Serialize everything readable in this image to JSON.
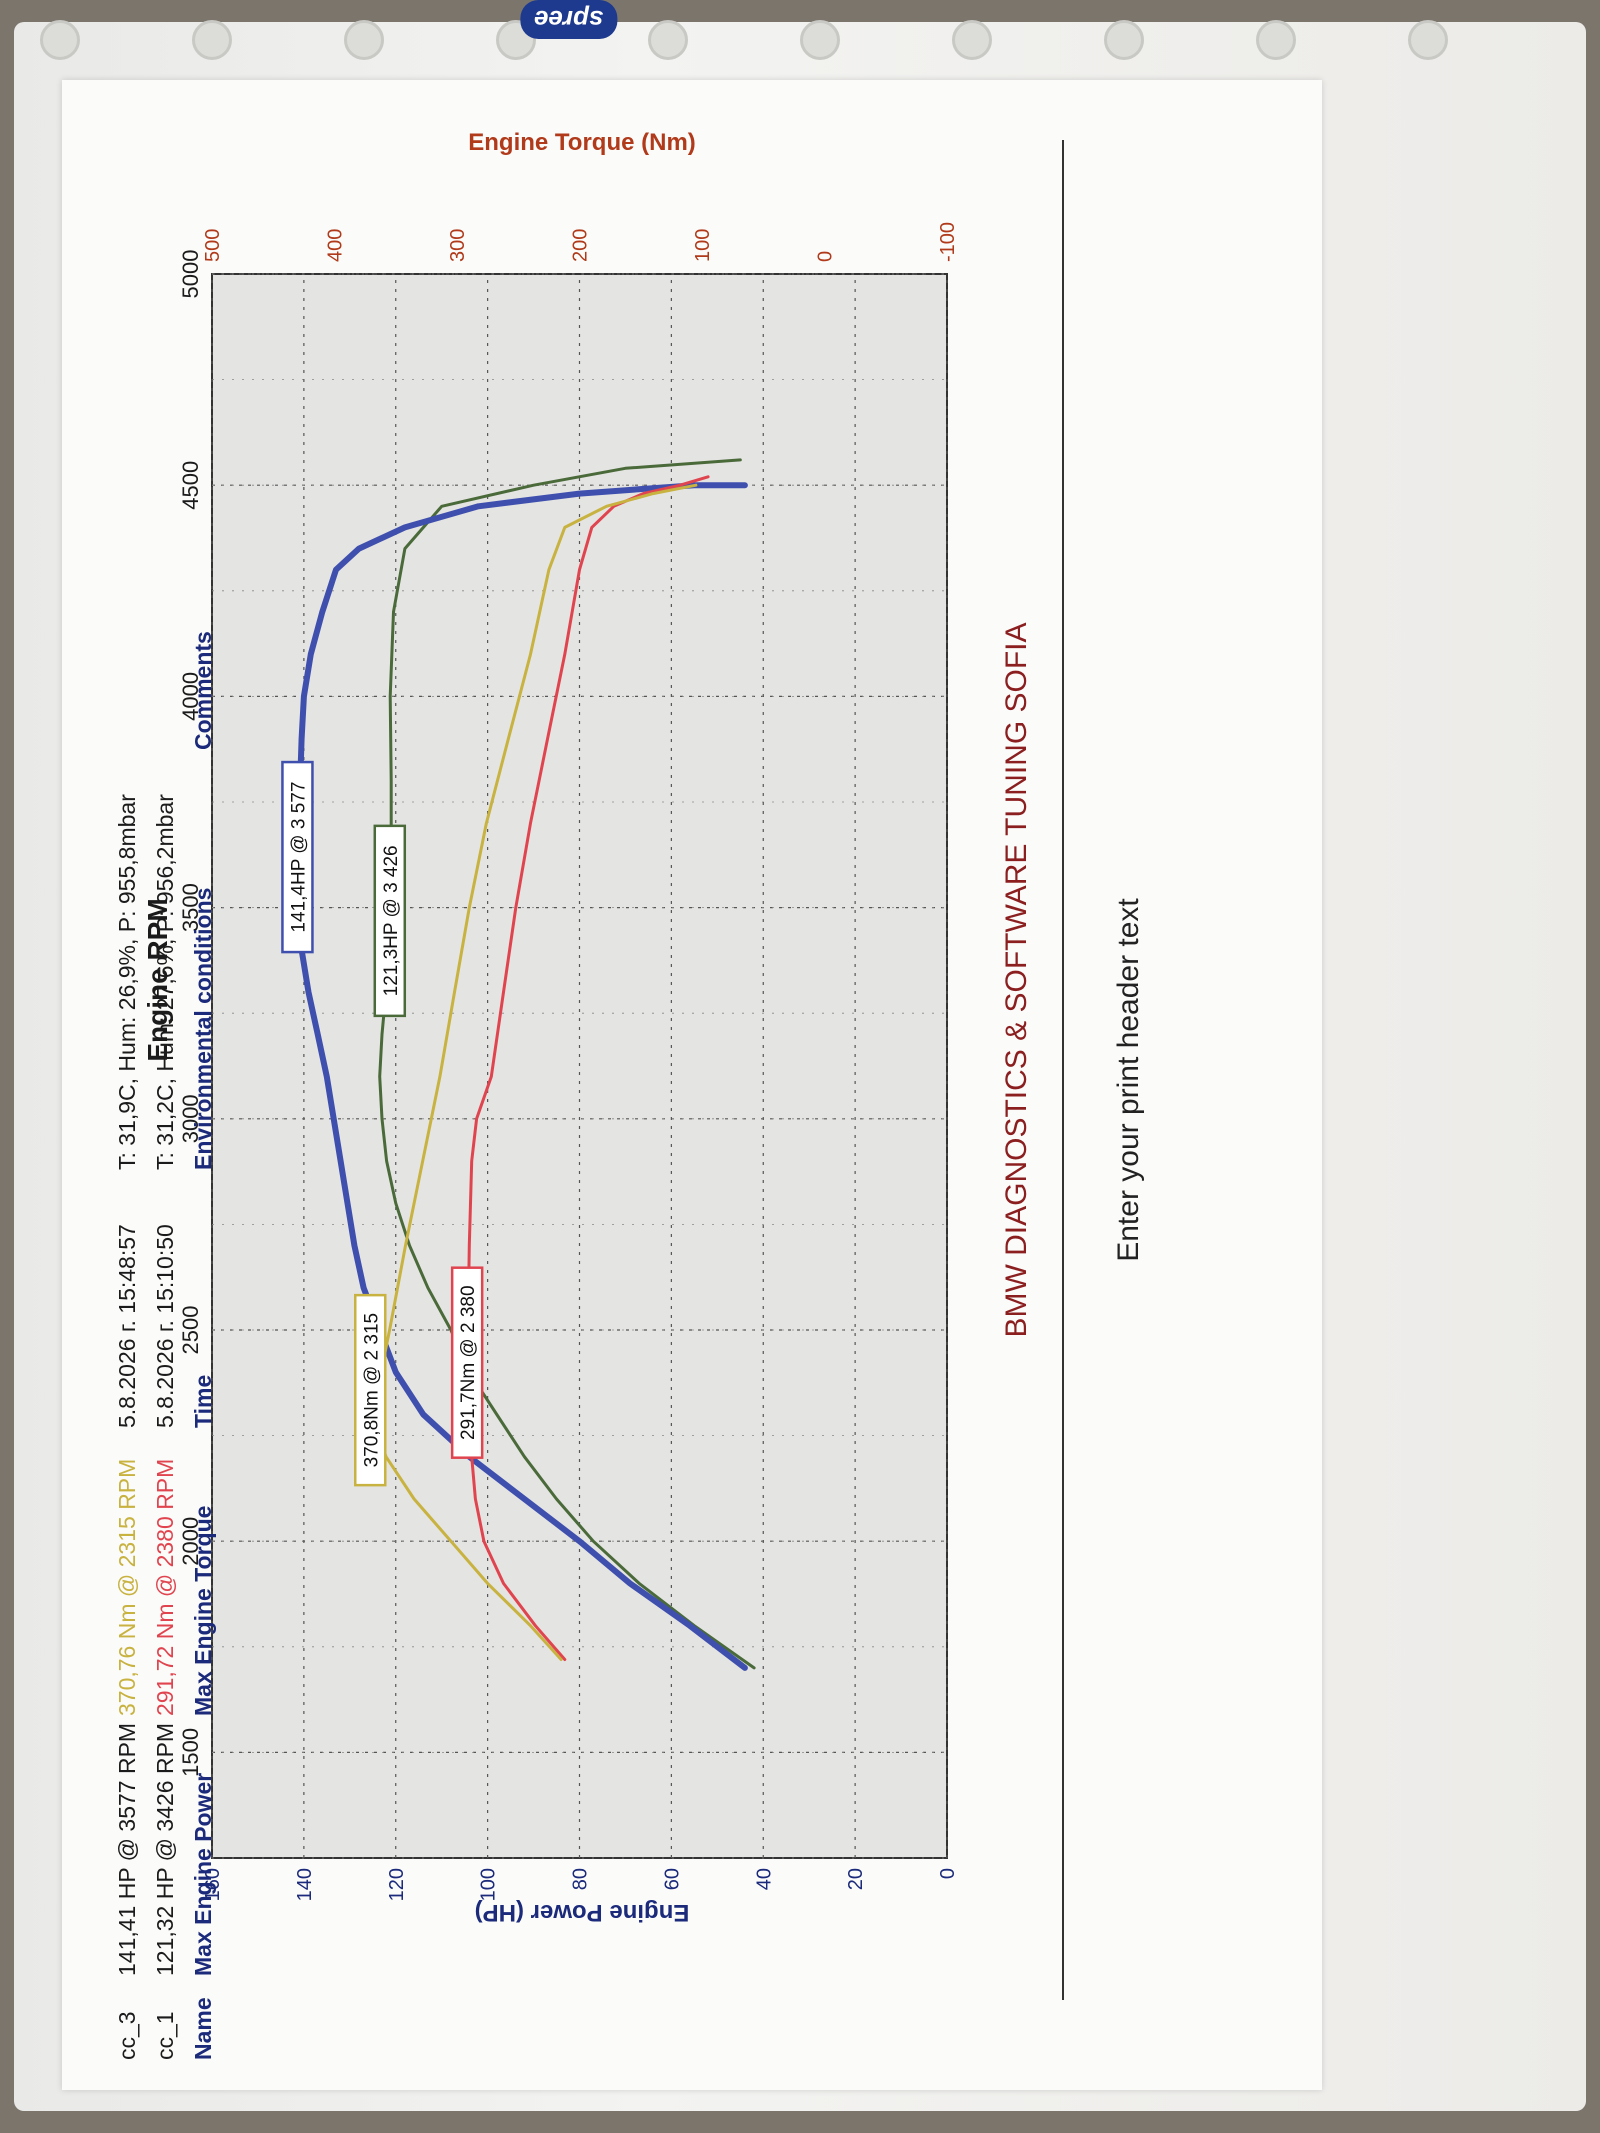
{
  "sleeve": {
    "brand": "spree"
  },
  "page": {
    "header_text": "Enter your print header text"
  },
  "chart_data": {
    "type": "line",
    "title": "BMW DIAGNOSTICS & SOFTWARE TUNING SOFIA",
    "xlabel": "Engine RPM",
    "ylabel_left": "Engine Power (HP)",
    "ylabel_right": "Engine Torque (Nm)",
    "xlim": [
      1250,
      5000
    ],
    "ylim_left": [
      0,
      160
    ],
    "ylim_right": [
      -100,
      500
    ],
    "x_ticks": [
      "1500",
      "2000",
      "2500",
      "3000",
      "3500",
      "4000",
      "4500",
      "5000"
    ],
    "y_ticks_left": [
      "0",
      "20",
      "40",
      "60",
      "80",
      "100",
      "120",
      "140",
      "160"
    ],
    "y_ticks_right": [
      "-100",
      "0",
      "100",
      "200",
      "300",
      "400",
      "500"
    ],
    "grid": true,
    "series": [
      {
        "name": "cc_1",
        "quantity": "power",
        "axis": "left",
        "color": "#4a6a3a",
        "points": [
          [
            1700,
            42
          ],
          [
            1800,
            55
          ],
          [
            1900,
            67
          ],
          [
            2000,
            77
          ],
          [
            2100,
            85
          ],
          [
            2200,
            92
          ],
          [
            2300,
            98
          ],
          [
            2400,
            104
          ],
          [
            2500,
            108
          ],
          [
            2600,
            113
          ],
          [
            2700,
            117
          ],
          [
            2800,
            120
          ],
          [
            2900,
            122
          ],
          [
            3000,
            123
          ],
          [
            3100,
            123.5
          ],
          [
            3200,
            123
          ],
          [
            3400,
            121.3
          ],
          [
            3600,
            121
          ],
          [
            3800,
            121
          ],
          [
            4000,
            121.2
          ],
          [
            4200,
            120.5
          ],
          [
            4350,
            118
          ],
          [
            4450,
            110
          ],
          [
            4500,
            90
          ],
          [
            4540,
            70
          ],
          [
            4560,
            45
          ]
        ]
      },
      {
        "name": "cc_3",
        "quantity": "power",
        "axis": "left",
        "color": "#3f4fae",
        "points": [
          [
            1700,
            44
          ],
          [
            1800,
            56
          ],
          [
            1900,
            69
          ],
          [
            2000,
            80
          ],
          [
            2100,
            92
          ],
          [
            2200,
            104
          ],
          [
            2300,
            114
          ],
          [
            2400,
            120
          ],
          [
            2500,
            123.5
          ],
          [
            2600,
            127
          ],
          [
            2700,
            129
          ],
          [
            2800,
            130.5
          ],
          [
            2900,
            132
          ],
          [
            3000,
            133.5
          ],
          [
            3100,
            135
          ],
          [
            3200,
            137
          ],
          [
            3300,
            139
          ],
          [
            3400,
            140.5
          ],
          [
            3500,
            141.2
          ],
          [
            3577,
            141.4
          ],
          [
            3700,
            141
          ],
          [
            3800,
            140.8
          ],
          [
            3900,
            140.5
          ],
          [
            4000,
            140
          ],
          [
            4100,
            138.5
          ],
          [
            4200,
            136
          ],
          [
            4300,
            133
          ],
          [
            4350,
            128
          ],
          [
            4400,
            118
          ],
          [
            4450,
            102
          ],
          [
            4480,
            80
          ],
          [
            4500,
            55
          ],
          [
            4500,
            44
          ]
        ]
      },
      {
        "name": "cc_1",
        "quantity": "torque",
        "axis": "right",
        "color": "#e0454f",
        "points": [
          [
            1720,
            212
          ],
          [
            1800,
            236
          ],
          [
            1900,
            262
          ],
          [
            2000,
            278
          ],
          [
            2100,
            285
          ],
          [
            2200,
            288
          ],
          [
            2300,
            290
          ],
          [
            2380,
            291.7
          ],
          [
            2500,
            291
          ],
          [
            2700,
            290
          ],
          [
            2900,
            288
          ],
          [
            3000,
            284
          ],
          [
            3100,
            272
          ],
          [
            3300,
            262
          ],
          [
            3500,
            252
          ],
          [
            3700,
            240
          ],
          [
            3900,
            226
          ],
          [
            4100,
            212
          ],
          [
            4300,
            200
          ],
          [
            4400,
            190
          ],
          [
            4450,
            172
          ],
          [
            4480,
            148
          ],
          [
            4500,
            118
          ],
          [
            4520,
            95
          ]
        ]
      },
      {
        "name": "cc_3",
        "quantity": "torque",
        "axis": "right",
        "color": "#c8b240",
        "points": [
          [
            1720,
            215
          ],
          [
            1800,
            240
          ],
          [
            1900,
            275
          ],
          [
            2000,
            305
          ],
          [
            2100,
            335
          ],
          [
            2200,
            358
          ],
          [
            2315,
            370.8
          ],
          [
            2400,
            362
          ],
          [
            2500,
            355
          ],
          [
            2700,
            342
          ],
          [
            2900,
            328
          ],
          [
            3100,
            314
          ],
          [
            3300,
            302
          ],
          [
            3500,
            290
          ],
          [
            3700,
            276
          ],
          [
            3900,
            258
          ],
          [
            4100,
            240
          ],
          [
            4300,
            225
          ],
          [
            4400,
            212
          ],
          [
            4450,
            178
          ],
          [
            4480,
            140
          ],
          [
            4500,
            105
          ]
        ]
      }
    ],
    "annotations": [
      {
        "text": "141,4HP @ 3 577",
        "color": "#3f4fae"
      },
      {
        "text": "121,3HP @ 3 426",
        "color": "#4a6a3a"
      },
      {
        "text": "370,8Nm @ 2 315",
        "color": "#c8b240"
      },
      {
        "text": "291,7Nm @ 2 380",
        "color": "#e0454f"
      }
    ],
    "results_table": {
      "headers": [
        "Name",
        "Max Engine Power",
        "Max Engine Torque",
        "Time",
        "Environmental conditions",
        "Comments"
      ],
      "rows": [
        {
          "name": "cc_1",
          "power": "121,32 HP @ 3426 RPM",
          "torque": "291,72 Nm @ 2380 RPM",
          "torque_color": "#e0454f",
          "time": "5.8.2026 г. 15:10:50",
          "env": "T: 31,2C, Hum: 27,6%, P: 956,2mbar",
          "comments": ""
        },
        {
          "name": "cc_3",
          "power": "141,41 HP @ 3577 RPM",
          "torque": "370,76 Nm @ 2315 RPM",
          "torque_color": "#c8b240",
          "time": "5.8.2026 г. 15:48:57",
          "env": "T: 31,9C, Hum: 26,9%, P: 955,8mbar",
          "comments": ""
        }
      ]
    }
  }
}
